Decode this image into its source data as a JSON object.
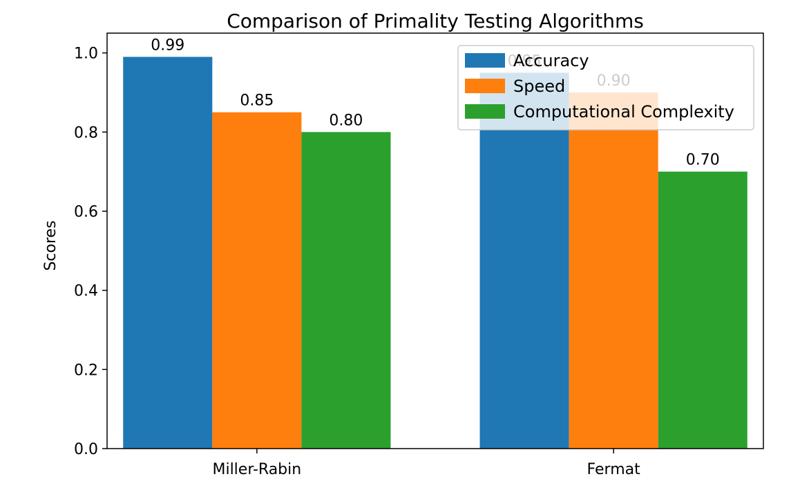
{
  "chart_data": {
    "type": "bar",
    "title": "Comparison of Primality Testing Algorithms",
    "xlabel": "",
    "ylabel": "Scores",
    "categories": [
      "Miller-Rabin",
      "Fermat"
    ],
    "series": [
      {
        "name": "Accuracy",
        "values": [
          0.99,
          0.95
        ],
        "labels": [
          "0.99",
          "0.95"
        ],
        "color": "#1f77b4"
      },
      {
        "name": "Speed",
        "values": [
          0.85,
          0.9
        ],
        "labels": [
          "0.85",
          "0.90"
        ],
        "color": "#ff7f0e"
      },
      {
        "name": "Computational Complexity",
        "values": [
          0.8,
          0.7
        ],
        "labels": [
          "0.80",
          "0.70"
        ],
        "color": "#2ca02c"
      }
    ],
    "ylim": [
      0,
      1.05
    ],
    "yticks": [
      "0.0",
      "0.2",
      "0.4",
      "0.6",
      "0.8",
      "1.0"
    ],
    "grid": false,
    "legend_position": "upper-right"
  }
}
